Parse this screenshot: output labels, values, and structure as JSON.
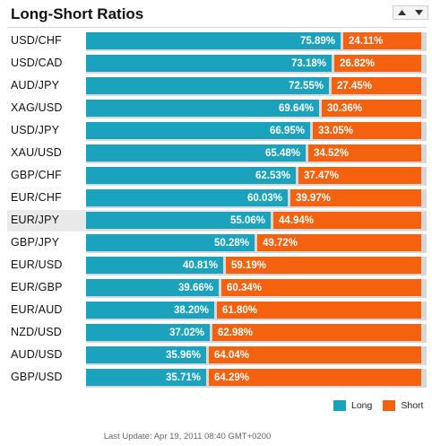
{
  "header": {
    "title": "Long-Short Ratios"
  },
  "colors": {
    "long": "#1ba3be",
    "short": "#f5620f",
    "track": "#d7d7d7",
    "highlight_row": "#e9e9e9"
  },
  "controls": {
    "up_icon": "triangle-up-icon",
    "down_icon": "triangle-down-icon"
  },
  "ratios": [
    {
      "pair": "USD/CHF",
      "long": 75.89,
      "short": 24.11,
      "long_label": "75.89%",
      "short_label": "24.11%"
    },
    {
      "pair": "USD/CAD",
      "long": 73.18,
      "short": 26.82,
      "long_label": "73.18%",
      "short_label": "26.82%"
    },
    {
      "pair": "AUD/JPY",
      "long": 72.55,
      "short": 27.45,
      "long_label": "72.55%",
      "short_label": "27.45%"
    },
    {
      "pair": "XAG/USD",
      "long": 69.64,
      "short": 30.36,
      "long_label": "69.64%",
      "short_label": "30.36%"
    },
    {
      "pair": "USD/JPY",
      "long": 66.95,
      "short": 33.05,
      "long_label": "66.95%",
      "short_label": "33.05%"
    },
    {
      "pair": "XAU/USD",
      "long": 65.48,
      "short": 34.52,
      "long_label": "65.48%",
      "short_label": "34.52%"
    },
    {
      "pair": "GBP/CHF",
      "long": 62.53,
      "short": 37.47,
      "long_label": "62.53%",
      "short_label": "37.47%"
    },
    {
      "pair": "EUR/CHF",
      "long": 60.03,
      "short": 39.97,
      "long_label": "60.03%",
      "short_label": "39.97%"
    },
    {
      "pair": "EUR/JPY",
      "long": 55.06,
      "short": 44.94,
      "long_label": "55.06%",
      "short_label": "44.94%",
      "highlighted": true
    },
    {
      "pair": "GBP/JPY",
      "long": 50.28,
      "short": 49.72,
      "long_label": "50.28%",
      "short_label": "49.72%"
    },
    {
      "pair": "EUR/USD",
      "long": 40.81,
      "short": 59.19,
      "long_label": "40.81%",
      "short_label": "59.19%"
    },
    {
      "pair": "EUR/GBP",
      "long": 39.66,
      "short": 60.34,
      "long_label": "39.66%",
      "short_label": "60.34%"
    },
    {
      "pair": "EUR/AUD",
      "long": 38.2,
      "short": 61.8,
      "long_label": "38.20%",
      "short_label": "61.80%"
    },
    {
      "pair": "NZD/USD",
      "long": 37.02,
      "short": 62.98,
      "long_label": "37.02%",
      "short_label": "62.98%"
    },
    {
      "pair": "AUD/USD",
      "long": 35.96,
      "short": 64.04,
      "long_label": "35.96%",
      "short_label": "64.04%"
    },
    {
      "pair": "GBP/USD",
      "long": 35.71,
      "short": 64.29,
      "long_label": "35.71%",
      "short_label": "64.29%"
    }
  ],
  "legend": {
    "long_label": "Long",
    "short_label": "Short"
  },
  "footer": {
    "last_update": "Last Update: Apr 19, 2011 08:40 GMT+0200"
  }
}
